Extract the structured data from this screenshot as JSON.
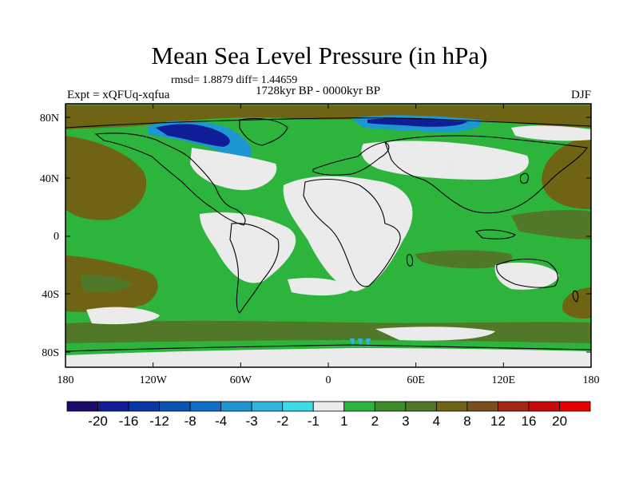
{
  "title": "Mean Sea Level Pressure (in hPa)",
  "stats": "rmsd= 1.8879 diff= 1.44659",
  "period": "1728kyr BP - 0000kyr BP",
  "experiment": "Expt = xQFUq-xqfua",
  "season": "DJF",
  "map": {
    "lon_ticks": [
      "180",
      "120W",
      "60W",
      "0",
      "60E",
      "120E",
      "180"
    ],
    "lat_ticks": [
      "80N",
      "40N",
      "0",
      "40S",
      "80S"
    ]
  },
  "colorbar": {
    "colors": [
      "#1e0a6e",
      "#0f1e96",
      "#0a37a5",
      "#0a55b4",
      "#0f6ec8",
      "#1e96d2",
      "#32b4e1",
      "#3cdce6",
      "#ebebeb",
      "#2db43c",
      "#3c8c28",
      "#507828",
      "#6e6414",
      "#78501e",
      "#a02814",
      "#c80a0a",
      "#e60000"
    ],
    "labels": [
      "-20",
      "-16",
      "-12",
      "-8",
      "-4",
      "-3",
      "-2",
      "-1",
      "1",
      "2",
      "3",
      "4",
      "8",
      "12",
      "16",
      "20"
    ]
  },
  "fill_colors": {
    "land_neutral": "#ebebeb",
    "green": "#2db43c",
    "olive": "#507828",
    "brown": "#6e6414",
    "blue": "#1e96d2",
    "dark_blue": "#0f1e96"
  }
}
